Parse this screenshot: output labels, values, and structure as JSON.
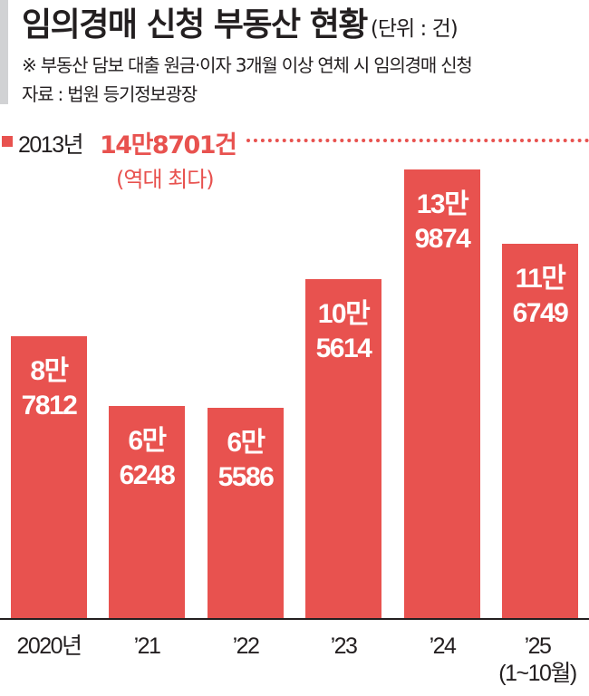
{
  "header": {
    "title": "임의경매 신청 부동산 현황",
    "unit": "(단위 : 건)",
    "note": "※ 부동산 담보 대출 원금·이자 3개월 이상 연체 시 임의경매 신청",
    "source": "자료 : 법원 등기정보광장"
  },
  "legend": {
    "year": "2013년",
    "value": "14만8701건",
    "sub": "(역대 최다)"
  },
  "colors": {
    "bar": "#e8524f",
    "axis": "#231f20",
    "side_bar": "#d1d2d4"
  },
  "bars": [
    {
      "label_top": "8만",
      "label_bottom": "7812",
      "x_label": "2020년",
      "x_sub": ""
    },
    {
      "label_top": "6만",
      "label_bottom": "6248",
      "x_label": "’21",
      "x_sub": ""
    },
    {
      "label_top": "6만",
      "label_bottom": "5586",
      "x_label": "’22",
      "x_sub": ""
    },
    {
      "label_top": "10만",
      "label_bottom": "5614",
      "x_label": "’23",
      "x_sub": ""
    },
    {
      "label_top": "13만",
      "label_bottom": "9874",
      "x_label": "’24",
      "x_sub": ""
    },
    {
      "label_top": "11만",
      "label_bottom": "6749",
      "x_label": "’25",
      "x_sub": "(1~10월)"
    }
  ],
  "chart_data": {
    "type": "bar",
    "title": "임의경매 신청 부동산 현황",
    "subtitle": "(단위 : 건)",
    "note": "※ 부동산 담보 대출 원금·이자 3개월 이상 연체 시 임의경매 신청",
    "source": "자료 : 법원 등기정보광장",
    "categories": [
      "2020년",
      "’21",
      "’22",
      "’23",
      "’24",
      "’25 (1~10월)"
    ],
    "values": [
      87812,
      66248,
      65586,
      105614,
      139874,
      116749
    ],
    "value_labels": [
      "8만 7812",
      "6만 6248",
      "6만 5586",
      "10만 5614",
      "13만 9874",
      "11만 6749"
    ],
    "reference_line": {
      "label": "2013년 14만8701건 (역대 최다)",
      "value": 148701,
      "style": "dotted"
    },
    "xlabel": "",
    "ylabel": "",
    "ylim": [
      0,
      148701
    ],
    "grid": false,
    "legend_position": "top-left"
  }
}
